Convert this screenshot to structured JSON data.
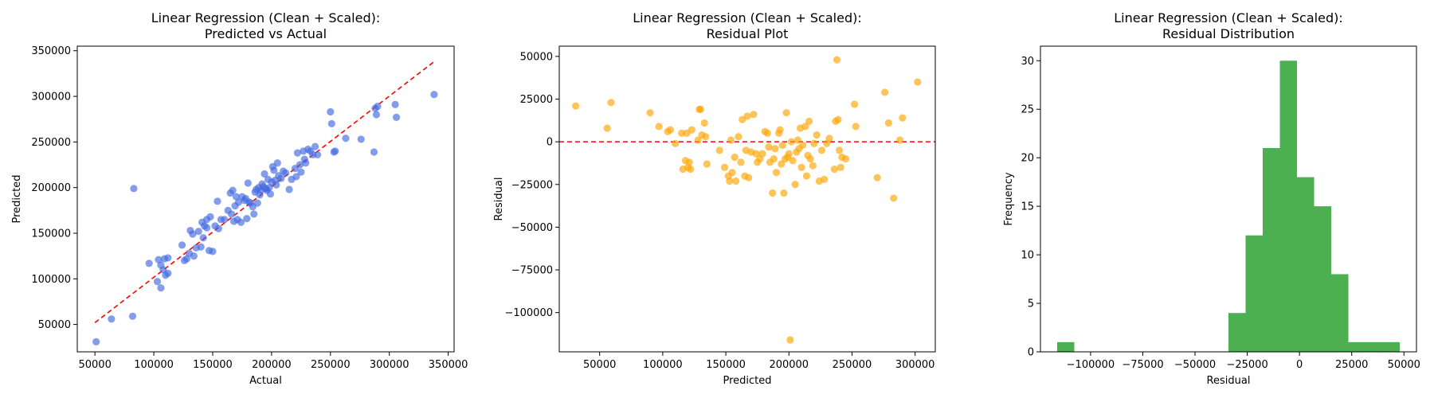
{
  "chart_data": [
    {
      "type": "scatter",
      "title_lines": [
        "Linear Regression (Clean + Scaled):",
        "Predicted vs Actual"
      ],
      "xlabel": "Actual",
      "ylabel": "Predicted",
      "xlim": [
        35000,
        355000
      ],
      "ylim": [
        20000,
        355000
      ],
      "xticks": [
        50000,
        100000,
        150000,
        200000,
        250000,
        300000,
        350000
      ],
      "yticks": [
        50000,
        100000,
        150000,
        200000,
        250000,
        300000,
        350000
      ],
      "point_color": "#4169e1",
      "reference_line": {
        "x": [
          50000,
          338000
        ],
        "y": [
          52000,
          338000
        ],
        "color": "#ff0000",
        "style": "dashed"
      },
      "points": [
        [
          51000,
          31000
        ],
        [
          64000,
          56000
        ],
        [
          82000,
          59000
        ],
        [
          83000,
          199000
        ],
        [
          96000,
          117000
        ],
        [
          103000,
          97000
        ],
        [
          104000,
          121000
        ],
        [
          106000,
          90000
        ],
        [
          106000,
          115000
        ],
        [
          108000,
          110000
        ],
        [
          109000,
          122000
        ],
        [
          110000,
          104000
        ],
        [
          112000,
          106000
        ],
        [
          112000,
          123000
        ],
        [
          124000,
          137000
        ],
        [
          126000,
          120000
        ],
        [
          128000,
          122000
        ],
        [
          130000,
          128000
        ],
        [
          131000,
          153000
        ],
        [
          133000,
          149000
        ],
        [
          134000,
          125000
        ],
        [
          136000,
          134000
        ],
        [
          138000,
          152000
        ],
        [
          140000,
          135000
        ],
        [
          141000,
          162000
        ],
        [
          142000,
          145000
        ],
        [
          143000,
          158000
        ],
        [
          145000,
          165000
        ],
        [
          145000,
          156000
        ],
        [
          147000,
          131000
        ],
        [
          148000,
          168000
        ],
        [
          150000,
          130000
        ],
        [
          152000,
          158000
        ],
        [
          154000,
          185000
        ],
        [
          155000,
          155000
        ],
        [
          157000,
          165000
        ],
        [
          160000,
          165000
        ],
        [
          163000,
          175000
        ],
        [
          165000,
          194000
        ],
        [
          166000,
          171000
        ],
        [
          167000,
          197000
        ],
        [
          168000,
          163000
        ],
        [
          169000,
          180000
        ],
        [
          170000,
          190000
        ],
        [
          171000,
          165000
        ],
        [
          172000,
          184000
        ],
        [
          174000,
          162000
        ],
        [
          175000,
          190000
        ],
        [
          177000,
          186000
        ],
        [
          178000,
          188000
        ],
        [
          179000,
          166000
        ],
        [
          180000,
          205000
        ],
        [
          181000,
          184000
        ],
        [
          182000,
          183000
        ],
        [
          184000,
          179000
        ],
        [
          185000,
          171000
        ],
        [
          186000,
          195000
        ],
        [
          187000,
          198000
        ],
        [
          188000,
          183000
        ],
        [
          189000,
          200000
        ],
        [
          190000,
          192000
        ],
        [
          191000,
          197000
        ],
        [
          192000,
          204000
        ],
        [
          193000,
          201000
        ],
        [
          194000,
          215000
        ],
        [
          195000,
          199000
        ],
        [
          196000,
          197000
        ],
        [
          197000,
          209000
        ],
        [
          198000,
          200000
        ],
        [
          199000,
          193000
        ],
        [
          200000,
          206000
        ],
        [
          201000,
          223000
        ],
        [
          202000,
          219000
        ],
        [
          203000,
          208000
        ],
        [
          204000,
          203000
        ],
        [
          205000,
          227000
        ],
        [
          206000,
          213000
        ],
        [
          208000,
          210000
        ],
        [
          210000,
          218000
        ],
        [
          212000,
          216000
        ],
        [
          215000,
          198000
        ],
        [
          217000,
          209000
        ],
        [
          220000,
          221000
        ],
        [
          221000,
          212000
        ],
        [
          222000,
          238000
        ],
        [
          224000,
          225000
        ],
        [
          225000,
          217000
        ],
        [
          227000,
          240000
        ],
        [
          228000,
          231000
        ],
        [
          229000,
          227000
        ],
        [
          231000,
          242000
        ],
        [
          233000,
          240000
        ],
        [
          235000,
          236000
        ],
        [
          237000,
          245000
        ],
        [
          239000,
          236000
        ],
        [
          250000,
          283000
        ],
        [
          251000,
          270000
        ],
        [
          253000,
          239000
        ],
        [
          254000,
          240000
        ],
        [
          263000,
          254000
        ],
        [
          276000,
          253000
        ],
        [
          287000,
          239000
        ],
        [
          288000,
          287000
        ],
        [
          289000,
          280000
        ],
        [
          290000,
          289000
        ],
        [
          305000,
          291000
        ],
        [
          306000,
          277000
        ],
        [
          338000,
          302000
        ]
      ]
    },
    {
      "type": "scatter",
      "title_lines": [
        "Linear Regression (Clean + Scaled):",
        "Residual Plot"
      ],
      "xlabel": "Predicted",
      "ylabel": "Residual",
      "xlim": [
        18000,
        316000
      ],
      "ylim": [
        -123000,
        56000
      ],
      "xticks": [
        50000,
        100000,
        150000,
        200000,
        250000,
        300000
      ],
      "yticks": [
        -100000,
        -75000,
        -50000,
        -25000,
        0,
        25000,
        50000
      ],
      "point_color": "#ffa500",
      "reference_line": {
        "y": 0,
        "color": "#ff0000",
        "style": "dashed"
      },
      "points": [
        [
          31000,
          21000
        ],
        [
          56000,
          8000
        ],
        [
          59000,
          23000
        ],
        [
          90000,
          17000
        ],
        [
          97000,
          9000
        ],
        [
          104000,
          6000
        ],
        [
          106000,
          7000
        ],
        [
          110000,
          -1000
        ],
        [
          115000,
          5000
        ],
        [
          116000,
          -16000
        ],
        [
          118000,
          -11000
        ],
        [
          119000,
          5000
        ],
        [
          120000,
          -15000
        ],
        [
          121000,
          -12000
        ],
        [
          122000,
          -16000
        ],
        [
          123000,
          7000
        ],
        [
          128000,
          1000
        ],
        [
          129000,
          19000
        ],
        [
          130000,
          19000
        ],
        [
          131000,
          4000
        ],
        [
          133000,
          11000
        ],
        [
          134000,
          3000
        ],
        [
          135000,
          -13000
        ],
        [
          145000,
          -5000
        ],
        [
          149000,
          -15000
        ],
        [
          152000,
          -20000
        ],
        [
          153000,
          -23000
        ],
        [
          154000,
          1000
        ],
        [
          155000,
          -18000
        ],
        [
          157000,
          -9000
        ],
        [
          158000,
          -23000
        ],
        [
          160000,
          3000
        ],
        [
          162000,
          -12000
        ],
        [
          163000,
          13000
        ],
        [
          165000,
          -20000
        ],
        [
          166000,
          -5000
        ],
        [
          167000,
          15000
        ],
        [
          168000,
          -21000
        ],
        [
          170000,
          -6000
        ],
        [
          172000,
          16000
        ],
        [
          174000,
          -7000
        ],
        [
          175000,
          -12000
        ],
        [
          177000,
          -10000
        ],
        [
          179000,
          -7000
        ],
        [
          181000,
          6000
        ],
        [
          183000,
          5000
        ],
        [
          184000,
          -3000
        ],
        [
          185000,
          -12000
        ],
        [
          187000,
          -30000
        ],
        [
          188000,
          -10000
        ],
        [
          189000,
          -4000
        ],
        [
          190000,
          -18000
        ],
        [
          192000,
          5000
        ],
        [
          193000,
          7000
        ],
        [
          194000,
          -13000
        ],
        [
          195000,
          -2000
        ],
        [
          196000,
          -30000
        ],
        [
          197000,
          -10000
        ],
        [
          198000,
          17000
        ],
        [
          199000,
          -9000
        ],
        [
          200000,
          -7000
        ],
        [
          201000,
          -116000
        ],
        [
          202000,
          0
        ],
        [
          203000,
          -11000
        ],
        [
          205000,
          -25000
        ],
        [
          206000,
          -6000
        ],
        [
          207000,
          1000
        ],
        [
          208000,
          -4000
        ],
        [
          209000,
          8000
        ],
        [
          210000,
          -15000
        ],
        [
          211000,
          -2000
        ],
        [
          213000,
          9000
        ],
        [
          214000,
          -20000
        ],
        [
          215000,
          -8000
        ],
        [
          216000,
          12000
        ],
        [
          217000,
          -10000
        ],
        [
          219000,
          -14000
        ],
        [
          220000,
          -1000
        ],
        [
          222000,
          4000
        ],
        [
          224000,
          -23000
        ],
        [
          226000,
          -5000
        ],
        [
          228000,
          -22000
        ],
        [
          230000,
          -1000
        ],
        [
          232000,
          2000
        ],
        [
          236000,
          -16000
        ],
        [
          237000,
          12000
        ],
        [
          238000,
          48000
        ],
        [
          239000,
          13000
        ],
        [
          240000,
          -5000
        ],
        [
          241000,
          -15000
        ],
        [
          242000,
          -9000
        ],
        [
          245000,
          -10000
        ],
        [
          252000,
          22000
        ],
        [
          253000,
          9000
        ],
        [
          270000,
          -21000
        ],
        [
          276000,
          29000
        ],
        [
          279000,
          11000
        ],
        [
          283000,
          -33000
        ],
        [
          288000,
          1000
        ],
        [
          290000,
          14000
        ],
        [
          302000,
          35000
        ]
      ]
    },
    {
      "type": "bar",
      "subtype": "histogram",
      "title_lines": [
        "Linear Regression (Clean + Scaled):",
        "Residual Distribution"
      ],
      "xlabel": "Residual",
      "ylabel": "Frequency",
      "xlim": [
        -124000,
        56000
      ],
      "ylim": [
        0,
        31.5
      ],
      "xticks": [
        -100000,
        -75000,
        -50000,
        -25000,
        0,
        25000,
        50000
      ],
      "yticks": [
        0,
        5,
        10,
        15,
        20,
        25,
        30
      ],
      "bar_color": "#4caf50",
      "bin_edges": [
        -116000,
        -107800,
        -99600,
        -91400,
        -83200,
        -75000,
        -66800,
        -58600,
        -50400,
        -42200,
        -34000,
        -25800,
        -17600,
        -9400,
        -1200,
        7000,
        15200,
        23400,
        31600,
        39800,
        48000
      ],
      "values": [
        1,
        0,
        0,
        0,
        0,
        0,
        0,
        0,
        0,
        0,
        4,
        12,
        21,
        30,
        18,
        15,
        8,
        1,
        1,
        1
      ]
    }
  ]
}
